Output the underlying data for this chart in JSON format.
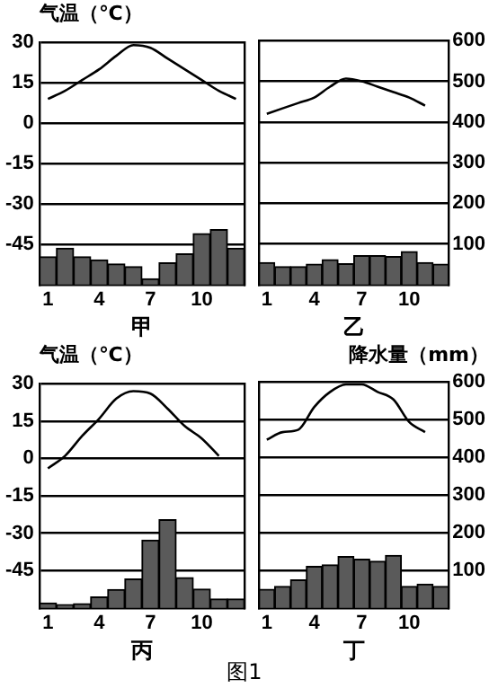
{
  "chart_data": [
    {
      "type": "bar",
      "xlabel": "甲",
      "ylabel": "气温（℃）",
      "x": [
        1,
        2,
        3,
        4,
        5,
        6,
        7,
        8,
        9,
        10,
        11,
        12
      ],
      "xlim": [
        0.5,
        12.5
      ],
      "xticks": [
        1,
        4,
        7,
        10
      ],
      "ylim": [
        -60,
        30
      ],
      "yticks": [
        -45,
        -30,
        -15,
        0,
        15,
        30
      ],
      "y2lim": [
        0,
        600
      ],
      "tick_labels": "xy",
      "grid": "y",
      "marker": "none",
      "series": [
        {
          "type": "line",
          "axis": "y",
          "color": "#000000",
          "values": [
            9,
            12,
            16,
            20,
            25,
            29,
            28,
            24,
            20,
            16,
            12,
            9
          ]
        },
        {
          "axis": "y2",
          "color": "#5a5a5a",
          "values": [
            69,
            90,
            69,
            61,
            51,
            44,
            14,
            54,
            76,
            126,
            136,
            90
          ]
        }
      ]
    },
    {
      "type": "bar",
      "xlabel": "乙",
      "x": [
        1,
        2,
        3,
        4,
        5,
        6,
        7,
        8,
        9,
        10,
        11,
        12
      ],
      "xlim": [
        0.5,
        12.5
      ],
      "xticks": [
        1,
        4,
        7,
        10
      ],
      "ylim": [
        -60,
        30
      ],
      "y2lim": [
        0,
        600
      ],
      "y2ticks": [
        100,
        200,
        300,
        400,
        500,
        600
      ],
      "tick_labels": "xy2",
      "grid": "y",
      "marker": "none",
      "series": [
        {
          "type": "line",
          "axis": "y",
          "color": "#000000",
          "values": [
            3,
            5,
            7,
            9,
            13,
            16,
            15,
            13,
            11,
            9,
            6,
            null
          ]
        },
        {
          "axis": "y2",
          "color": "#5a5a5a",
          "values": [
            54,
            44,
            44,
            50,
            61,
            51,
            71,
            71,
            69,
            81,
            54,
            50
          ]
        }
      ]
    },
    {
      "type": "bar",
      "xlabel": "丙",
      "ylabel": "气温（℃）",
      "x": [
        1,
        2,
        3,
        4,
        5,
        6,
        7,
        8,
        9,
        10,
        11,
        12
      ],
      "xlim": [
        0.5,
        12.5
      ],
      "xticks": [
        1,
        4,
        7,
        10
      ],
      "ylim": [
        -60,
        30
      ],
      "yticks": [
        -45,
        -30,
        -15,
        0,
        15,
        30
      ],
      "y2lim": [
        0,
        600
      ],
      "tick_labels": "xy",
      "grid": "y",
      "marker": "none",
      "series": [
        {
          "type": "line",
          "axis": "y",
          "color": "#000000",
          "values": [
            -4,
            1,
            9,
            16,
            24,
            27,
            26,
            20,
            13,
            8,
            1,
            null
          ]
        },
        {
          "axis": "y2",
          "color": "#5a5a5a",
          "values": [
            13,
            9,
            11,
            29,
            49,
            77,
            181,
            236,
            81,
            50,
            24,
            24
          ]
        }
      ]
    },
    {
      "type": "bar",
      "xlabel": "丁",
      "y2label": "降水量（mm）",
      "x": [
        1,
        2,
        3,
        4,
        5,
        6,
        7,
        8,
        9,
        10,
        11,
        12
      ],
      "xlim": [
        0.5,
        12.5
      ],
      "xticks": [
        1,
        4,
        7,
        10
      ],
      "ylim": [
        -60,
        30
      ],
      "y2lim": [
        0,
        600
      ],
      "y2ticks": [
        100,
        200,
        300,
        400,
        500,
        600
      ],
      "tick_labels": "xy2",
      "grid": "y",
      "marker": "none",
      "annotations": [
        "图1"
      ],
      "series": [
        {
          "type": "line",
          "axis": "y",
          "color": "#000000",
          "values": [
            7,
            10,
            11,
            20,
            26,
            29,
            29,
            26,
            23,
            14,
            10,
            null
          ]
        },
        {
          "axis": "y2",
          "color": "#5a5a5a",
          "values": [
            49,
            57,
            74,
            110,
            114,
            136,
            129,
            124,
            139,
            57,
            63,
            57
          ]
        }
      ]
    }
  ]
}
